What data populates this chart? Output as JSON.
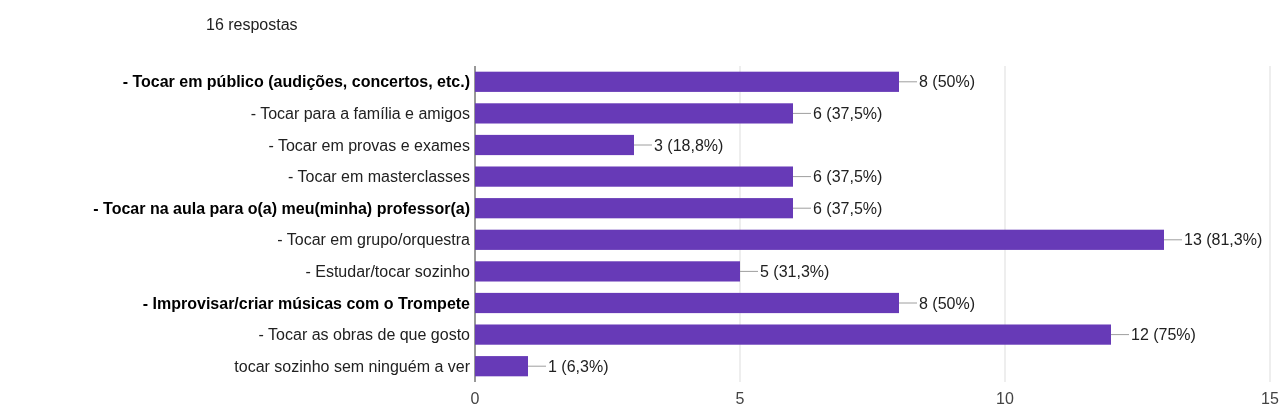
{
  "chart_data": {
    "type": "bar",
    "orientation": "horizontal",
    "subtitle": "16 respostas",
    "categories": [
      "- Tocar em público (audições, concertos, etc.)",
      "- Tocar para a família e amigos",
      "- Tocar em provas e exames",
      "- Tocar em masterclasses",
      "- Tocar na aula para o(a) meu(minha) professor(a)",
      "- Tocar em grupo/orquestra",
      "- Estudar/tocar sozinho",
      "- Improvisar/criar músicas com o Trompete",
      "- Tocar as obras de que gosto",
      "tocar sozinho sem ninguém a ver"
    ],
    "values": [
      8,
      6,
      3,
      6,
      6,
      13,
      5,
      8,
      12,
      1
    ],
    "value_labels": [
      "8 (50%)",
      "6 (37,5%)",
      "3 (18,8%)",
      "6 (37,5%)",
      "6 (37,5%)",
      "13 (81,3%)",
      "5 (31,3%)",
      "8 (50%)",
      "12 (75%)",
      "1 (6,3%)"
    ],
    "color": "#673ab7",
    "xlim": [
      0,
      15
    ],
    "xticks": [
      0,
      5,
      10,
      15
    ],
    "grid": "x"
  }
}
